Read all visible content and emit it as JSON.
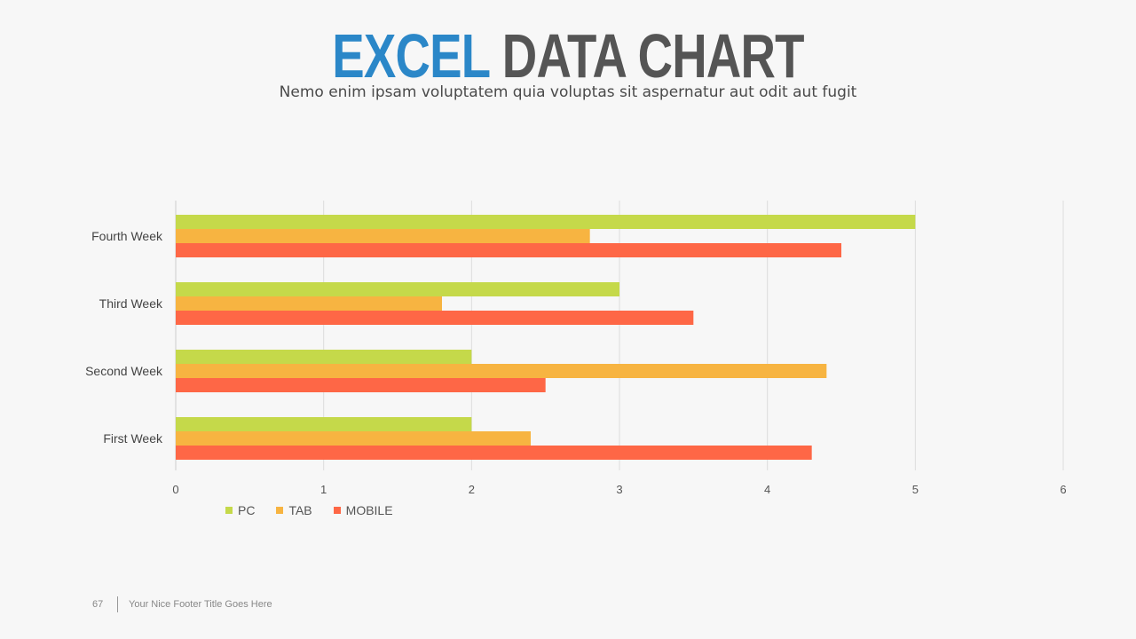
{
  "header": {
    "title_accent": "EXCEL",
    "title_rest": "DATA CHART",
    "subtitle": "Nemo enim ipsam voluptatem quia voluptas sit aspernatur  aut odit aut fugit"
  },
  "chart_data": {
    "type": "bar",
    "orientation": "horizontal",
    "categories": [
      "First Week",
      "Second Week",
      "Third Week",
      "Fourth Week"
    ],
    "series": [
      {
        "name": "PC",
        "color": "#c5d94a",
        "values": [
          2,
          2,
          3,
          5
        ]
      },
      {
        "name": "TAB",
        "color": "#f7b441",
        "values": [
          2.4,
          4.4,
          1.8,
          2.8
        ]
      },
      {
        "name": "MOBILE",
        "color": "#fe6746",
        "values": [
          4.3,
          2.5,
          3.5,
          4.5
        ]
      }
    ],
    "xlim": [
      0,
      6
    ],
    "xticks": [
      "0",
      "1",
      "2",
      "3",
      "4",
      "5",
      "6"
    ],
    "grid": true,
    "legend_position": "bottom-left"
  },
  "footer": {
    "page_number": "67",
    "text": "Your Nice Footer Title Goes Here"
  }
}
